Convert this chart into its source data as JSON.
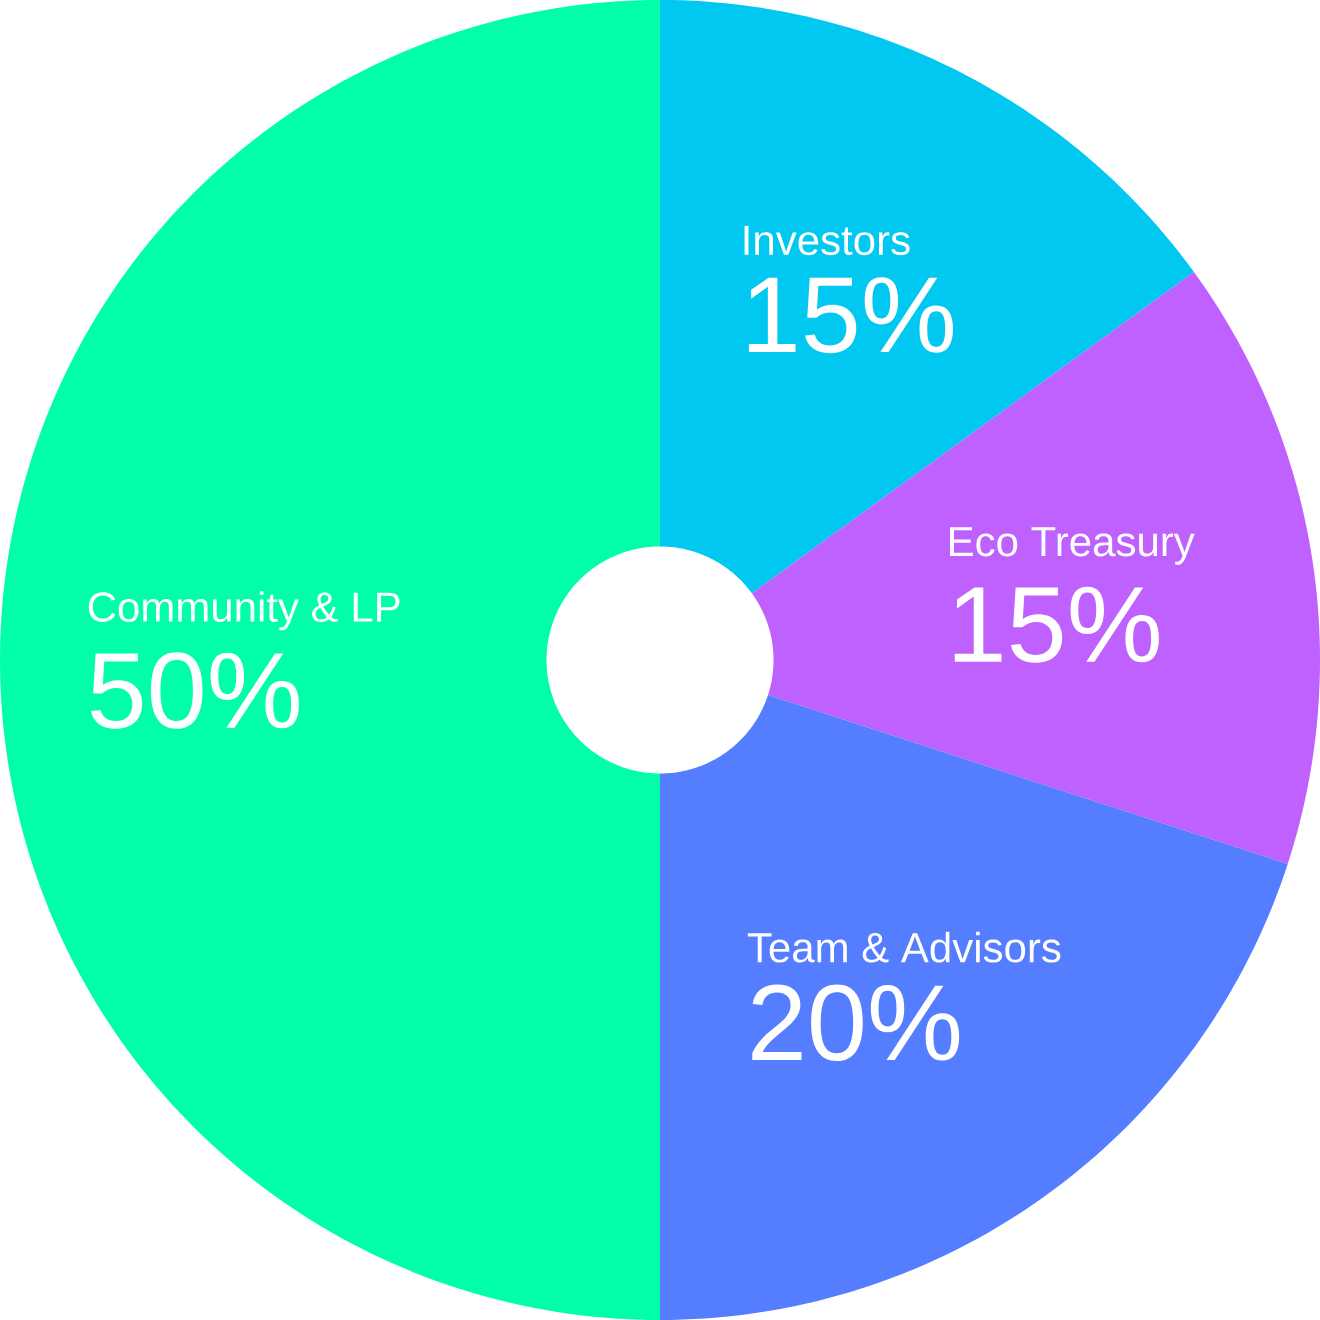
{
  "chart_data": {
    "type": "donut",
    "categories": [
      "Investors",
      "Eco Treasury",
      "Team & Advisors",
      "Community & LP"
    ],
    "values": [
      15,
      15,
      20,
      50
    ],
    "value_labels": [
      "15%",
      "15%",
      "20%",
      "50%"
    ],
    "colors": [
      "#00c8f0",
      "#bf61ff",
      "#557dff",
      "#00ffa6"
    ]
  }
}
